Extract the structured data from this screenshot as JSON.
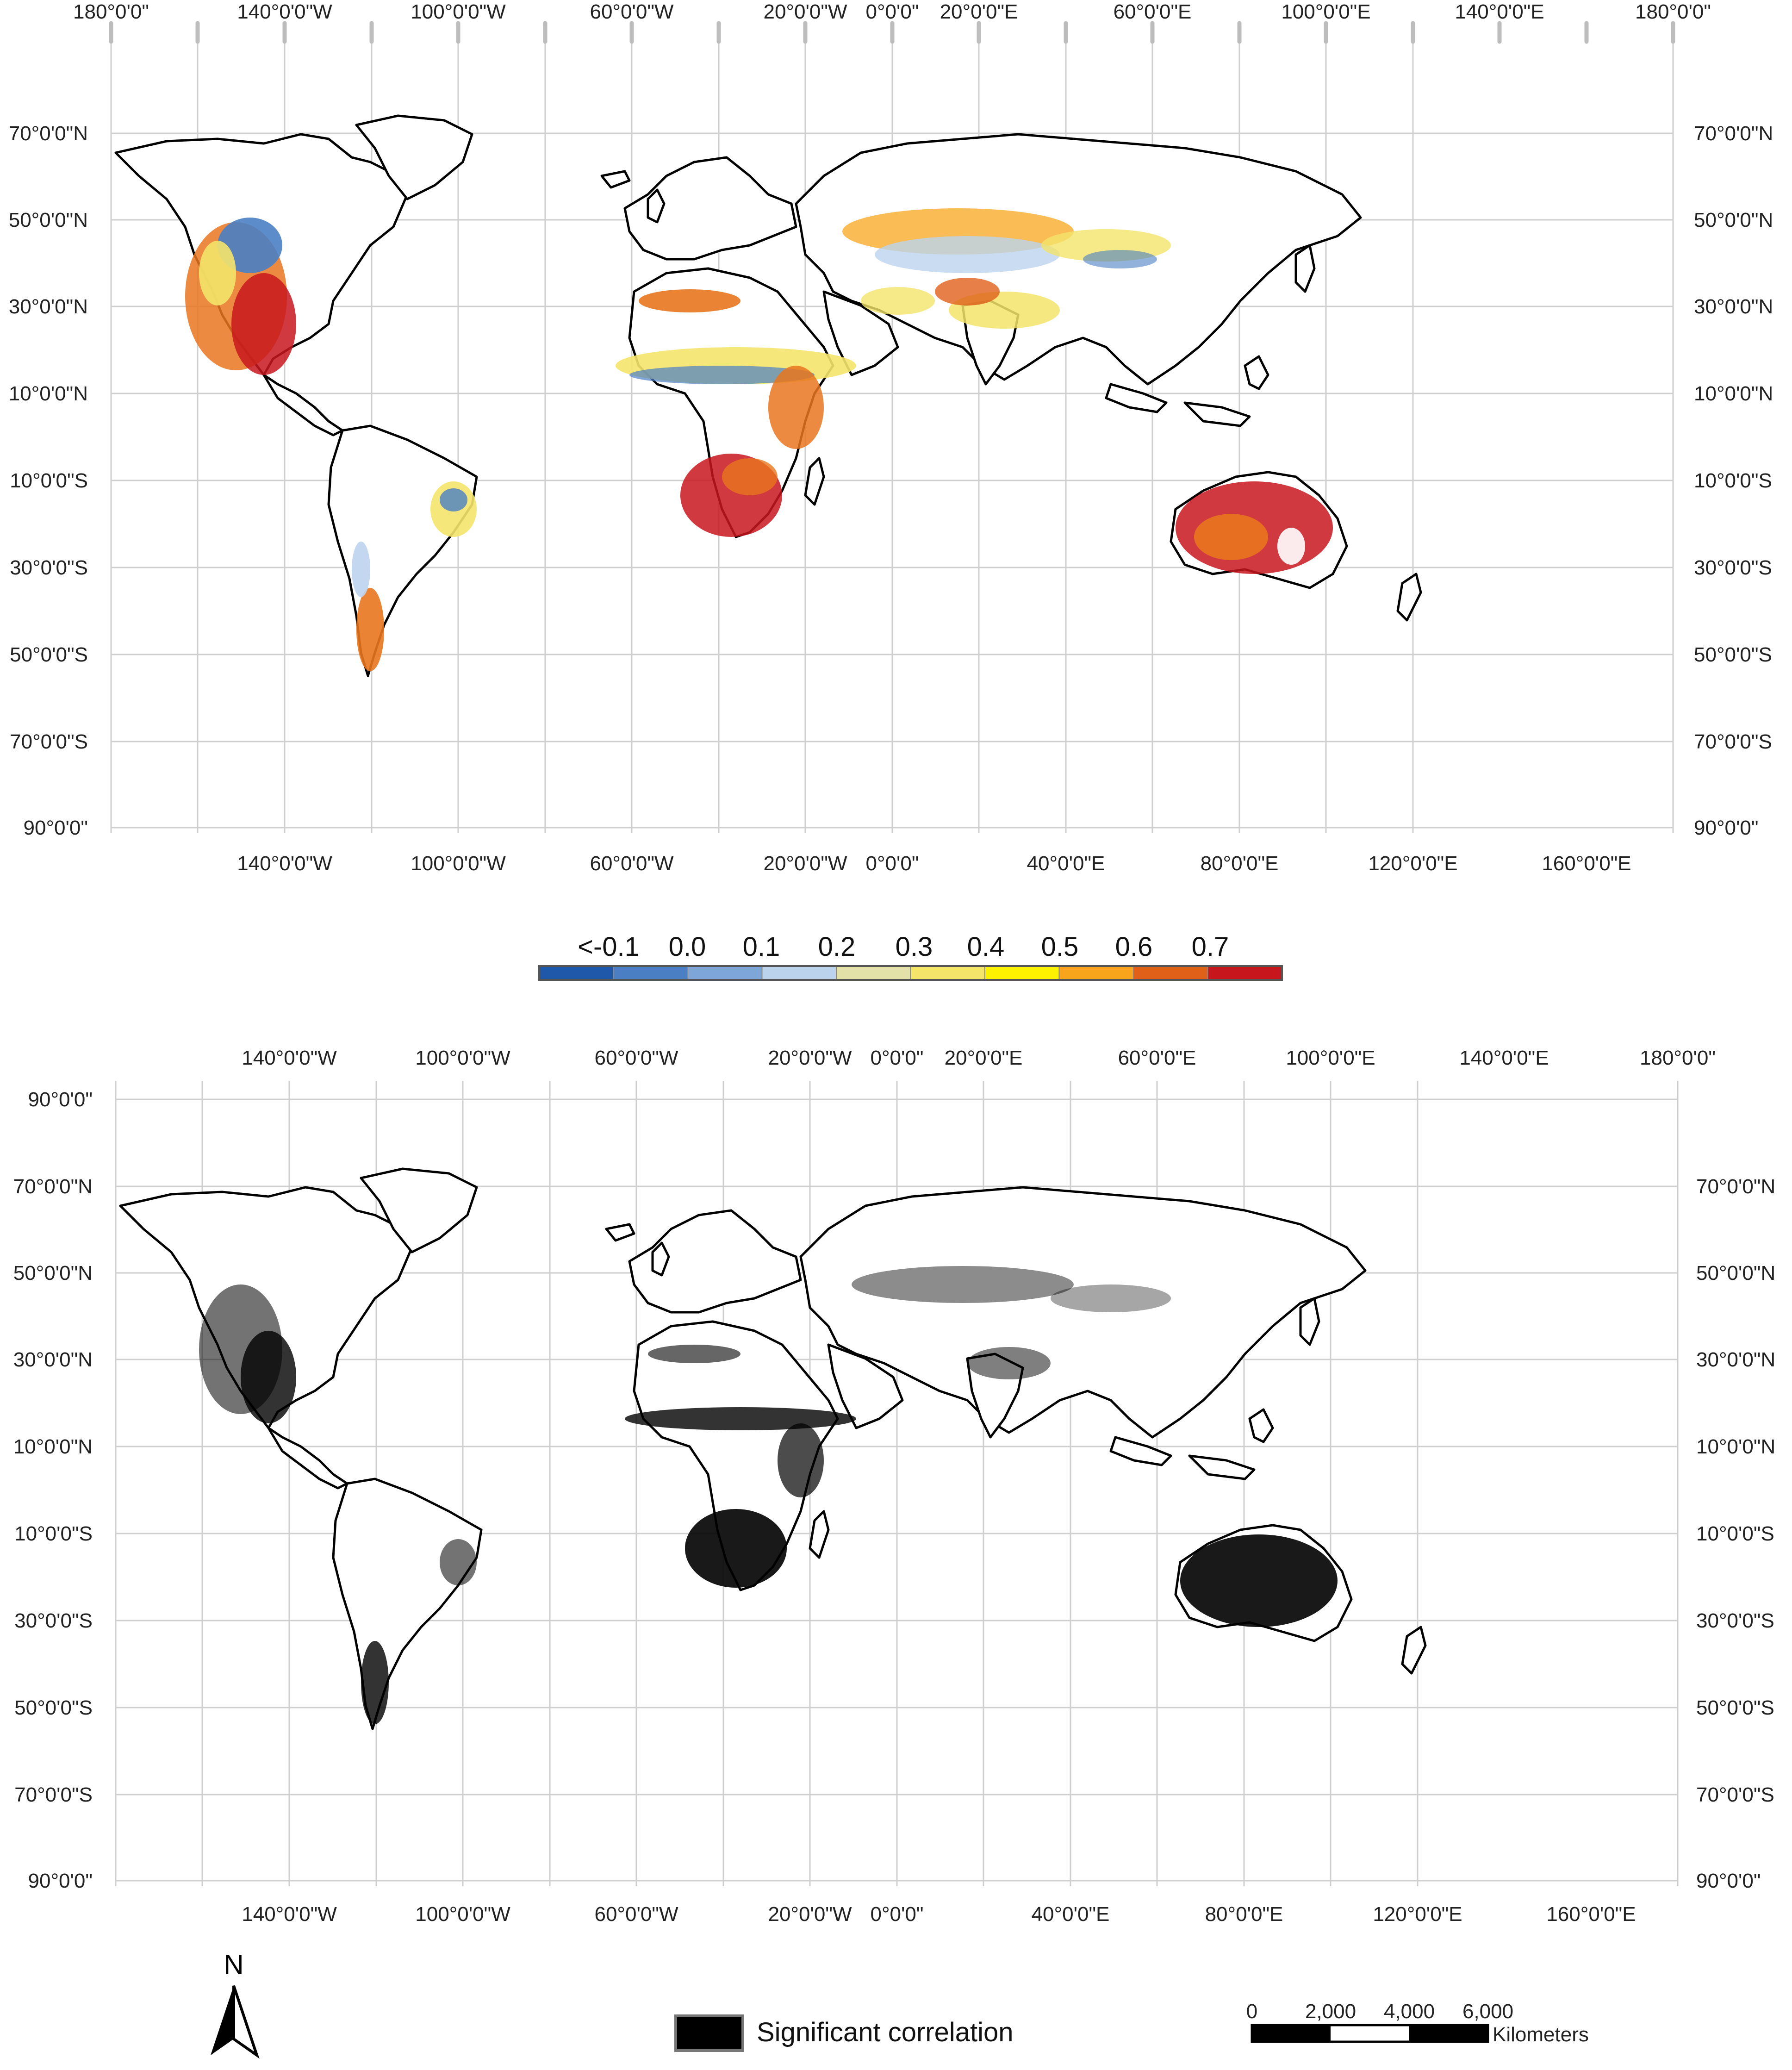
{
  "top_map": {
    "top_labels": [
      "180°0'0\"",
      "140°0'0\"W",
      "100°0'0\"W",
      "60°0'0\"W",
      "20°0'0\"W",
      "0°0'0\"",
      "20°0'0\"E",
      "60°0'0\"E",
      "100°0'0\"E",
      "140°0'0\"E",
      "180°0'0\""
    ],
    "bottom_labels": [
      "140°0'0\"W",
      "100°0'0\"W",
      "60°0'0\"W",
      "20°0'0\"W",
      "0°0'0\"",
      "40°0'0\"E",
      "80°0'0\"E",
      "120°0'0\"E",
      "160°0'0\"E"
    ],
    "lat_labels": [
      "70°0'0\"N",
      "50°0'0\"N",
      "30°0'0\"N",
      "10°0'0\"N",
      "10°0'0\"S",
      "30°0'0\"S",
      "50°0'0\"S",
      "70°0'0\"S",
      "90°0'0\""
    ],
    "left_lat_labels": [
      "70°0'0\"N",
      "50°0'0\"N",
      "30°0'0\"N",
      "10°0'0\"N",
      "10°0'0\"S",
      "30°0'0\"S",
      "50°0'0\"S",
      "70°0'0\"S",
      "90°0'0\""
    ]
  },
  "color_legend": {
    "labels": [
      "<-0.1",
      "0.0",
      "0.1",
      "0.2",
      "0.3",
      "0.4",
      "0.5",
      "0.6",
      "0.7"
    ],
    "colors": [
      "#1f58a8",
      "#4a7fc4",
      "#7fa6d9",
      "#bcd3ee",
      "#e3e0a8",
      "#f4e46a",
      "#fff200",
      "#f8a51c",
      "#e0601a",
      "#c8161d"
    ]
  },
  "bottom_map": {
    "top_labels": [
      "140°0'0\"W",
      "100°0'0\"W",
      "60°0'0\"W",
      "20°0'0\"W",
      "0°0'0\"",
      "20°0'0\"E",
      "60°0'0\"E",
      "100°0'0\"E",
      "140°0'0\"E",
      "180°0'0\""
    ],
    "bottom_labels": [
      "140°0'0\"W",
      "100°0'0\"W",
      "60°0'0\"W",
      "20°0'0\"W",
      "0°0'0\"",
      "40°0'0\"E",
      "80°0'0\"E",
      "120°0'0\"E",
      "160°0'0\"E"
    ],
    "left_lat_labels": [
      "90°0'0\"",
      "70°0'0\"N",
      "50°0'0\"N",
      "30°0'0\"N",
      "10°0'0\"N",
      "10°0'0\"S",
      "30°0'0\"S",
      "50°0'0\"S",
      "70°0'0\"S",
      "90°0'0\""
    ],
    "right_lat_labels": [
      "70°0'0\"N",
      "50°0'0\"N",
      "30°0'0\"N",
      "10°0'0\"N",
      "10°0'0\"S",
      "30°0'0\"S",
      "50°0'0\"S",
      "70°0'0\"S",
      "90°0'0\""
    ]
  },
  "north_arrow": {
    "label": "N"
  },
  "significance_legend": {
    "label": "Significant correlation",
    "color": "#000000"
  },
  "scale_bar": {
    "ticks": [
      "0",
      "2,000",
      "4,000",
      "6,000"
    ],
    "unit": "Kilometers"
  }
}
